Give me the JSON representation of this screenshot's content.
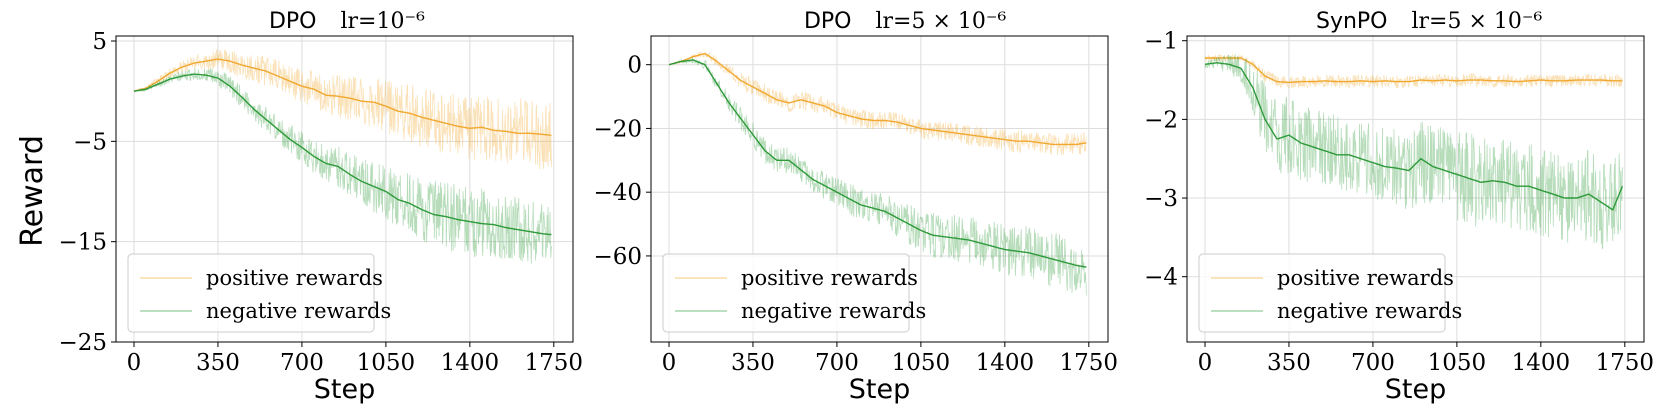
{
  "figure": {
    "ylabel": "Reward",
    "colors": {
      "positive": "#f0a830",
      "negative": "#2e9a3a",
      "grid": "#dddddd"
    }
  },
  "chart_data": [
    {
      "type": "line",
      "title": "DPO",
      "title_lr": "lr=10⁻⁶",
      "xlabel": "Step",
      "ylabel": "Reward",
      "xlim": [
        -75,
        1830
      ],
      "ylim": [
        -25,
        5.5
      ],
      "xticks": [
        0,
        350,
        700,
        1050,
        1400,
        1750
      ],
      "xtick_labels": [
        "0",
        "350",
        "700",
        "1050",
        "1400",
        "1750"
      ],
      "yticks": [
        5,
        -5,
        -15,
        -25
      ],
      "ytick_labels": [
        "5",
        "−5",
        "−15",
        "−25"
      ],
      "grid": true,
      "legend": {
        "location": "lower-left",
        "entries": [
          "positive rewards",
          "negative rewards"
        ]
      },
      "series": [
        {
          "name": "positive rewards",
          "color": "#f0a830",
          "x": [
            0,
            50,
            100,
            150,
            200,
            250,
            300,
            350,
            400,
            450,
            500,
            550,
            600,
            650,
            700,
            750,
            800,
            850,
            900,
            950,
            1000,
            1050,
            1100,
            1150,
            1200,
            1250,
            1300,
            1350,
            1400,
            1450,
            1500,
            1550,
            1600,
            1650,
            1700,
            1740
          ],
          "values": [
            0,
            0.3,
            1.0,
            1.8,
            2.4,
            2.8,
            3.0,
            3.2,
            3.0,
            2.6,
            2.3,
            2.0,
            1.5,
            1.0,
            0.5,
            0.2,
            -0.4,
            -0.5,
            -0.7,
            -1.0,
            -1.1,
            -1.5,
            -2.0,
            -2.2,
            -2.6,
            -2.9,
            -3.2,
            -3.5,
            -3.7,
            -3.6,
            -3.9,
            -4.0,
            -4.2,
            -4.2,
            -4.3,
            -4.4
          ],
          "noise": [
            0,
            0.3,
            0.4,
            0.5,
            0.6,
            0.8,
            0.9,
            1.0,
            1.2,
            1.3,
            1.4,
            1.5,
            1.6,
            1.7,
            1.8,
            1.9,
            2.0,
            2.2,
            2.4,
            2.5,
            2.6,
            2.7,
            2.8,
            2.9,
            3.0,
            3.1,
            3.2,
            3.2,
            3.3,
            3.3,
            3.4,
            3.4,
            3.5,
            3.5,
            3.5,
            3.5
          ]
        },
        {
          "name": "negative rewards",
          "color": "#2e9a3a",
          "x": [
            0,
            50,
            100,
            150,
            200,
            250,
            300,
            350,
            400,
            450,
            500,
            550,
            600,
            650,
            700,
            750,
            800,
            850,
            900,
            950,
            1000,
            1050,
            1100,
            1150,
            1200,
            1250,
            1300,
            1350,
            1400,
            1450,
            1500,
            1550,
            1600,
            1650,
            1700,
            1740
          ],
          "values": [
            0,
            0.2,
            0.7,
            1.2,
            1.5,
            1.7,
            1.6,
            1.3,
            0.5,
            -0.6,
            -1.8,
            -2.8,
            -3.8,
            -4.8,
            -5.6,
            -6.5,
            -7.2,
            -7.5,
            -8.3,
            -9.0,
            -9.5,
            -10.0,
            -10.8,
            -11.2,
            -11.8,
            -12.3,
            -12.5,
            -12.8,
            -13.0,
            -13.2,
            -13.3,
            -13.6,
            -13.8,
            -14.0,
            -14.2,
            -14.3
          ],
          "noise": [
            0,
            0.2,
            0.3,
            0.4,
            0.5,
            0.6,
            0.7,
            0.9,
            1.0,
            1.1,
            1.2,
            1.3,
            1.4,
            1.5,
            1.6,
            1.7,
            1.8,
            2.0,
            2.2,
            2.4,
            2.6,
            2.7,
            2.8,
            3.0,
            3.2,
            3.4,
            3.5,
            3.5,
            3.5,
            3.5,
            3.4,
            3.3,
            3.2,
            3.2,
            3.0,
            3.0
          ]
        }
      ]
    },
    {
      "type": "line",
      "title": "DPO",
      "title_lr": "lr=5 × 10⁻⁶",
      "xlabel": "Step",
      "ylabel": "",
      "xlim": [
        -75,
        1830
      ],
      "ylim": [
        -87,
        9
      ],
      "xticks": [
        0,
        350,
        700,
        1050,
        1400,
        1750
      ],
      "xtick_labels": [
        "0",
        "350",
        "700",
        "1050",
        "1400",
        "1750"
      ],
      "yticks": [
        0,
        -20,
        -40,
        -60
      ],
      "ytick_labels": [
        "0",
        "−20",
        "−40",
        "−60"
      ],
      "grid": true,
      "legend": {
        "location": "lower-left",
        "entries": [
          "positive rewards",
          "negative rewards"
        ]
      },
      "series": [
        {
          "name": "positive rewards",
          "color": "#f0a830",
          "x": [
            0,
            50,
            100,
            150,
            200,
            250,
            300,
            350,
            400,
            450,
            500,
            550,
            600,
            650,
            700,
            750,
            800,
            850,
            900,
            950,
            1000,
            1050,
            1100,
            1150,
            1200,
            1250,
            1300,
            1350,
            1400,
            1450,
            1500,
            1550,
            1600,
            1650,
            1700,
            1740
          ],
          "values": [
            0,
            1,
            2.5,
            3.5,
            1,
            -2,
            -5,
            -7,
            -9,
            -11,
            -12,
            -11,
            -12,
            -13,
            -15,
            -16,
            -17,
            -17.5,
            -17.5,
            -18,
            -19,
            -20,
            -20.5,
            -21,
            -21.5,
            -22,
            -22.5,
            -23,
            -23.5,
            -24,
            -24,
            -24.5,
            -25,
            -25,
            -25,
            -24.5
          ],
          "noise": [
            0,
            0.5,
            0.8,
            1,
            1.5,
            2,
            2.5,
            3,
            3,
            3,
            3,
            3,
            3,
            3,
            3,
            3,
            3,
            3,
            3,
            3,
            3,
            3.2,
            3.2,
            3.3,
            3.3,
            3.3,
            3.4,
            3.4,
            3.5,
            3.5,
            3.5,
            3.5,
            3.5,
            3.5,
            3.5,
            3.5
          ]
        },
        {
          "name": "negative rewards",
          "color": "#2e9a3a",
          "x": [
            0,
            50,
            100,
            150,
            200,
            250,
            300,
            350,
            400,
            450,
            500,
            550,
            600,
            650,
            700,
            750,
            800,
            850,
            900,
            950,
            1000,
            1050,
            1100,
            1150,
            1200,
            1250,
            1300,
            1350,
            1400,
            1450,
            1500,
            1550,
            1600,
            1650,
            1700,
            1740
          ],
          "values": [
            0,
            1,
            1.5,
            0,
            -6,
            -12,
            -17,
            -22,
            -27,
            -30,
            -30,
            -33,
            -36,
            -38,
            -40,
            -42,
            -44,
            -45,
            -46,
            -48,
            -50,
            -52,
            -53.5,
            -54,
            -54.5,
            -55,
            -56,
            -57,
            -58,
            -58.5,
            -59,
            -60,
            -61,
            -62,
            -63,
            -63.5
          ],
          "noise": [
            0,
            0.5,
            1,
            1.5,
            2,
            3,
            3.5,
            4,
            4,
            4,
            4,
            4,
            4,
            4.5,
            4.5,
            5,
            5,
            5,
            5.5,
            6,
            6.5,
            7,
            7,
            7,
            7.5,
            7.5,
            8,
            8,
            8,
            8,
            8.5,
            8.5,
            9,
            9,
            9,
            9
          ]
        }
      ]
    },
    {
      "type": "line",
      "title": "SynPO",
      "title_lr": "lr=5 × 10⁻⁶",
      "xlabel": "Step",
      "ylabel": "",
      "xlim": [
        -75,
        1830
      ],
      "ylim": [
        -4.83,
        -0.94
      ],
      "xticks": [
        0,
        350,
        700,
        1050,
        1400,
        1750
      ],
      "xtick_labels": [
        "0",
        "350",
        "700",
        "1050",
        "1400",
        "1750"
      ],
      "yticks": [
        -1,
        -2,
        -3,
        -4
      ],
      "ytick_labels": [
        "−1",
        "−2",
        "−3",
        "−4"
      ],
      "grid": true,
      "legend": {
        "location": "lower-left",
        "entries": [
          "positive rewards",
          "negative rewards"
        ]
      },
      "series": [
        {
          "name": "positive rewards",
          "color": "#f0a830",
          "x": [
            0,
            50,
            100,
            150,
            200,
            250,
            300,
            350,
            400,
            450,
            500,
            550,
            600,
            650,
            700,
            750,
            800,
            850,
            900,
            950,
            1000,
            1050,
            1100,
            1150,
            1200,
            1250,
            1300,
            1350,
            1400,
            1450,
            1500,
            1550,
            1600,
            1650,
            1700,
            1740
          ],
          "values": [
            -1.22,
            -1.22,
            -1.22,
            -1.22,
            -1.3,
            -1.45,
            -1.52,
            -1.53,
            -1.52,
            -1.52,
            -1.51,
            -1.52,
            -1.52,
            -1.51,
            -1.52,
            -1.51,
            -1.52,
            -1.52,
            -1.5,
            -1.51,
            -1.5,
            -1.51,
            -1.5,
            -1.5,
            -1.51,
            -1.51,
            -1.52,
            -1.51,
            -1.5,
            -1.51,
            -1.51,
            -1.5,
            -1.5,
            -1.5,
            -1.51,
            -1.51
          ],
          "noise": [
            0.04,
            0.04,
            0.04,
            0.04,
            0.06,
            0.08,
            0.08,
            0.08,
            0.08,
            0.08,
            0.08,
            0.08,
            0.08,
            0.08,
            0.08,
            0.08,
            0.08,
            0.08,
            0.08,
            0.08,
            0.08,
            0.08,
            0.08,
            0.08,
            0.08,
            0.08,
            0.08,
            0.08,
            0.08,
            0.08,
            0.08,
            0.08,
            0.08,
            0.08,
            0.08,
            0.08
          ]
        },
        {
          "name": "negative rewards",
          "color": "#2e9a3a",
          "x": [
            0,
            50,
            100,
            150,
            200,
            250,
            300,
            350,
            400,
            450,
            500,
            550,
            600,
            650,
            700,
            750,
            800,
            850,
            900,
            950,
            1000,
            1050,
            1100,
            1150,
            1200,
            1250,
            1300,
            1350,
            1400,
            1450,
            1500,
            1550,
            1600,
            1650,
            1700,
            1740
          ],
          "values": [
            -1.3,
            -1.28,
            -1.3,
            -1.35,
            -1.6,
            -2.0,
            -2.25,
            -2.2,
            -2.3,
            -2.35,
            -2.4,
            -2.45,
            -2.45,
            -2.5,
            -2.55,
            -2.6,
            -2.62,
            -2.65,
            -2.5,
            -2.6,
            -2.65,
            -2.7,
            -2.75,
            -2.8,
            -2.78,
            -2.8,
            -2.85,
            -2.85,
            -2.9,
            -2.95,
            -3.0,
            -3.0,
            -2.95,
            -3.05,
            -3.15,
            -2.85
          ],
          "noise": [
            0.05,
            0.08,
            0.12,
            0.2,
            0.35,
            0.45,
            0.5,
            0.5,
            0.5,
            0.5,
            0.5,
            0.5,
            0.5,
            0.5,
            0.5,
            0.5,
            0.55,
            0.55,
            0.55,
            0.55,
            0.55,
            0.6,
            0.6,
            0.6,
            0.6,
            0.6,
            0.6,
            0.6,
            0.6,
            0.6,
            0.6,
            0.6,
            0.6,
            0.6,
            0.6,
            0.6
          ]
        }
      ]
    }
  ]
}
